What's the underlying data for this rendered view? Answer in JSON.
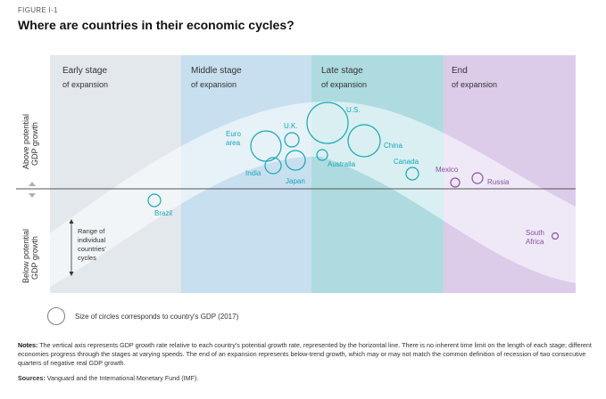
{
  "figure_label": "FIGURE I-1",
  "title": "Where are countries in their economic cycles?",
  "stages": [
    {
      "name": "Early stage",
      "sub": "of expansion",
      "color": "#e3e8ed"
    },
    {
      "name": "Middle stage",
      "sub": "of expansion",
      "color": "#c8dff0"
    },
    {
      "name": "Late stage",
      "sub": "of expansion",
      "color": "#aedbe0"
    },
    {
      "name": "End",
      "sub": "of expansion",
      "color": "#dcccea"
    }
  ],
  "y_axis": {
    "above": [
      "Above potential",
      "GDP growth"
    ],
    "below": [
      "Below potential",
      "GDP growth"
    ]
  },
  "range_note": [
    "Range of",
    "individual",
    "countries'",
    "cycles"
  ],
  "countries": [
    {
      "name": "Brazil",
      "color": "#16a7b8"
    },
    {
      "name": "India",
      "color": "#16a7b8"
    },
    {
      "name": "Euro area",
      "lines": [
        "Euro",
        "area"
      ],
      "color": "#16a7b8"
    },
    {
      "name": "U.K.",
      "color": "#16a7b8"
    },
    {
      "name": "Japan",
      "color": "#16a7b8"
    },
    {
      "name": "U.S.",
      "color": "#16a7b8"
    },
    {
      "name": "Australia",
      "color": "#16a7b8"
    },
    {
      "name": "China",
      "color": "#16a7b8"
    },
    {
      "name": "Canada",
      "color": "#16a7b8"
    },
    {
      "name": "Mexico",
      "color": "#8a4fa8"
    },
    {
      "name": "Russia",
      "color": "#8a4fa8"
    },
    {
      "name": "South Africa",
      "lines": [
        "South",
        "Africa"
      ],
      "color": "#8a4fa8"
    }
  ],
  "legend": "Size of circles corresponds to country's GDP (2017)",
  "notes_label": "Notes:",
  "notes": "The vertical axis represents GDP growth rate relative to each country's potential growth rate, represented by the horizontal line. There is no inherent time limit on the length of each stage; different economies progress through the stages at varying speeds. The end of an expansion represents below-trend growth, which may or may not match the common definition of recession of two consecutive quarters of negative real GDP growth.",
  "sources_label": "Sources:",
  "sources": "Vanguard and the International Monetary Fund (IMF)."
}
